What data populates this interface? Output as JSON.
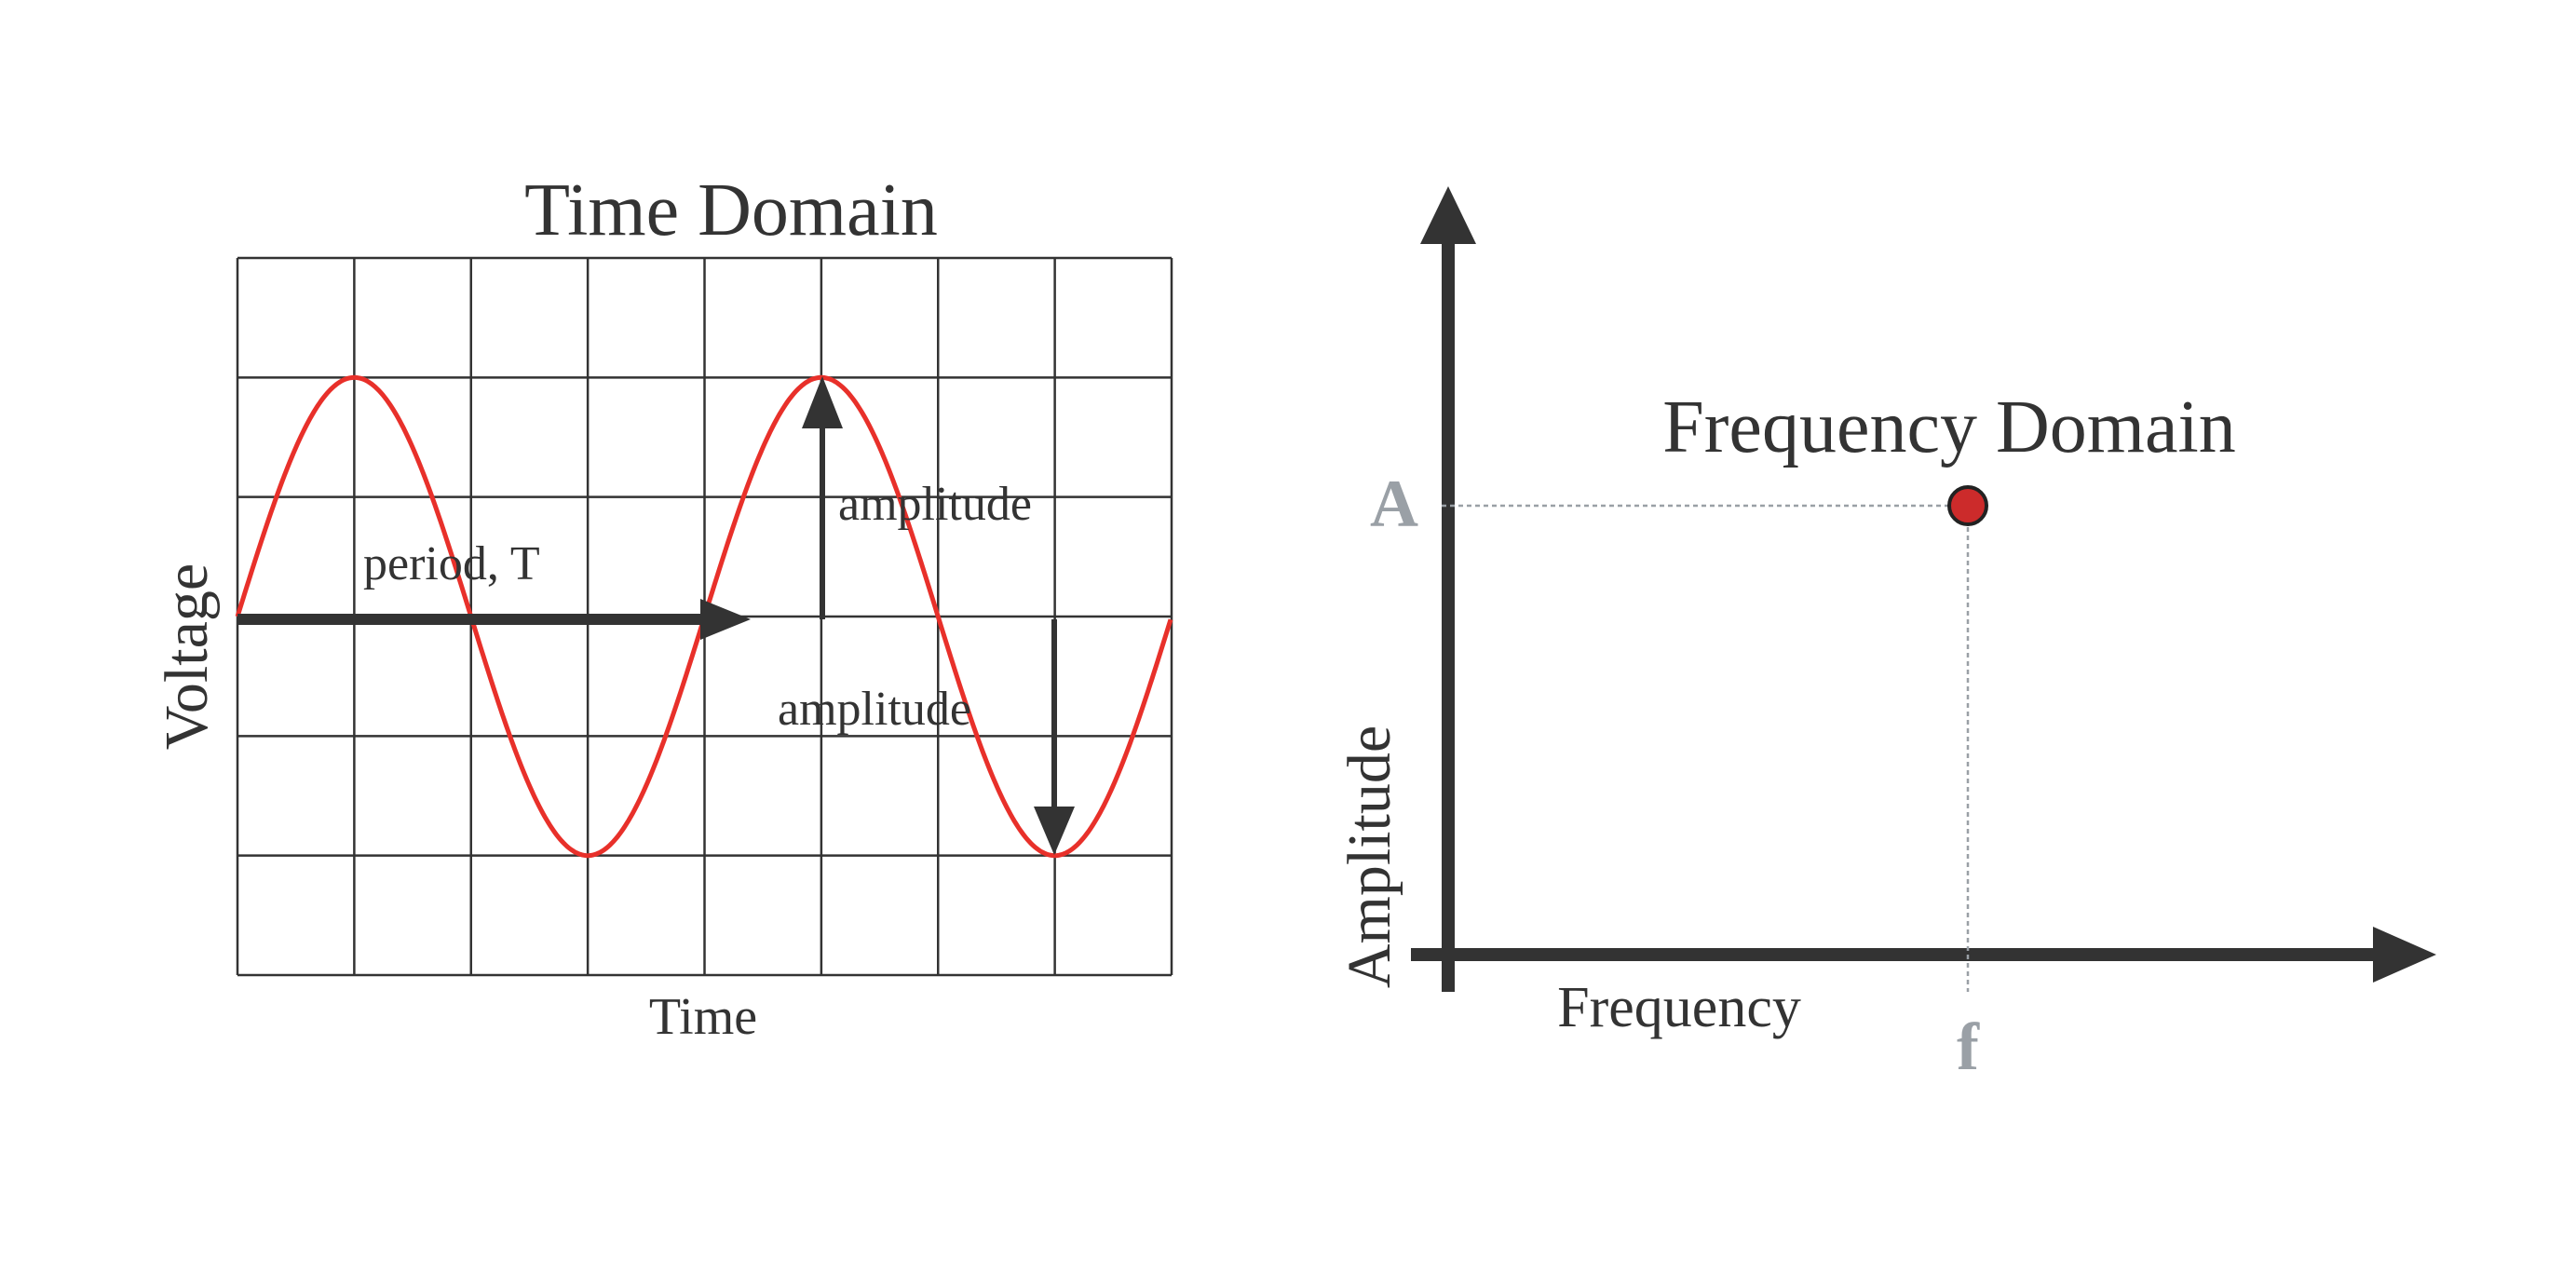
{
  "time_domain": {
    "title": "Time Domain",
    "xlabel": "Time",
    "ylabel": "Voltage",
    "annotations": {
      "period": "period, T",
      "amplitude_up": "amplitude",
      "amplitude_down": "amplitude"
    },
    "grid": {
      "cols": 8,
      "rows": 6
    },
    "wave_color": "#e8302a",
    "arrow_color": "#333333"
  },
  "frequency_domain": {
    "title": "Frequency Domain",
    "xlabel": "Frequency",
    "ylabel": "Amplitude",
    "amp_marker": "A",
    "freq_marker": "f",
    "point_color": "#cc2b2b",
    "guide_color": "#9aa0a6"
  }
}
